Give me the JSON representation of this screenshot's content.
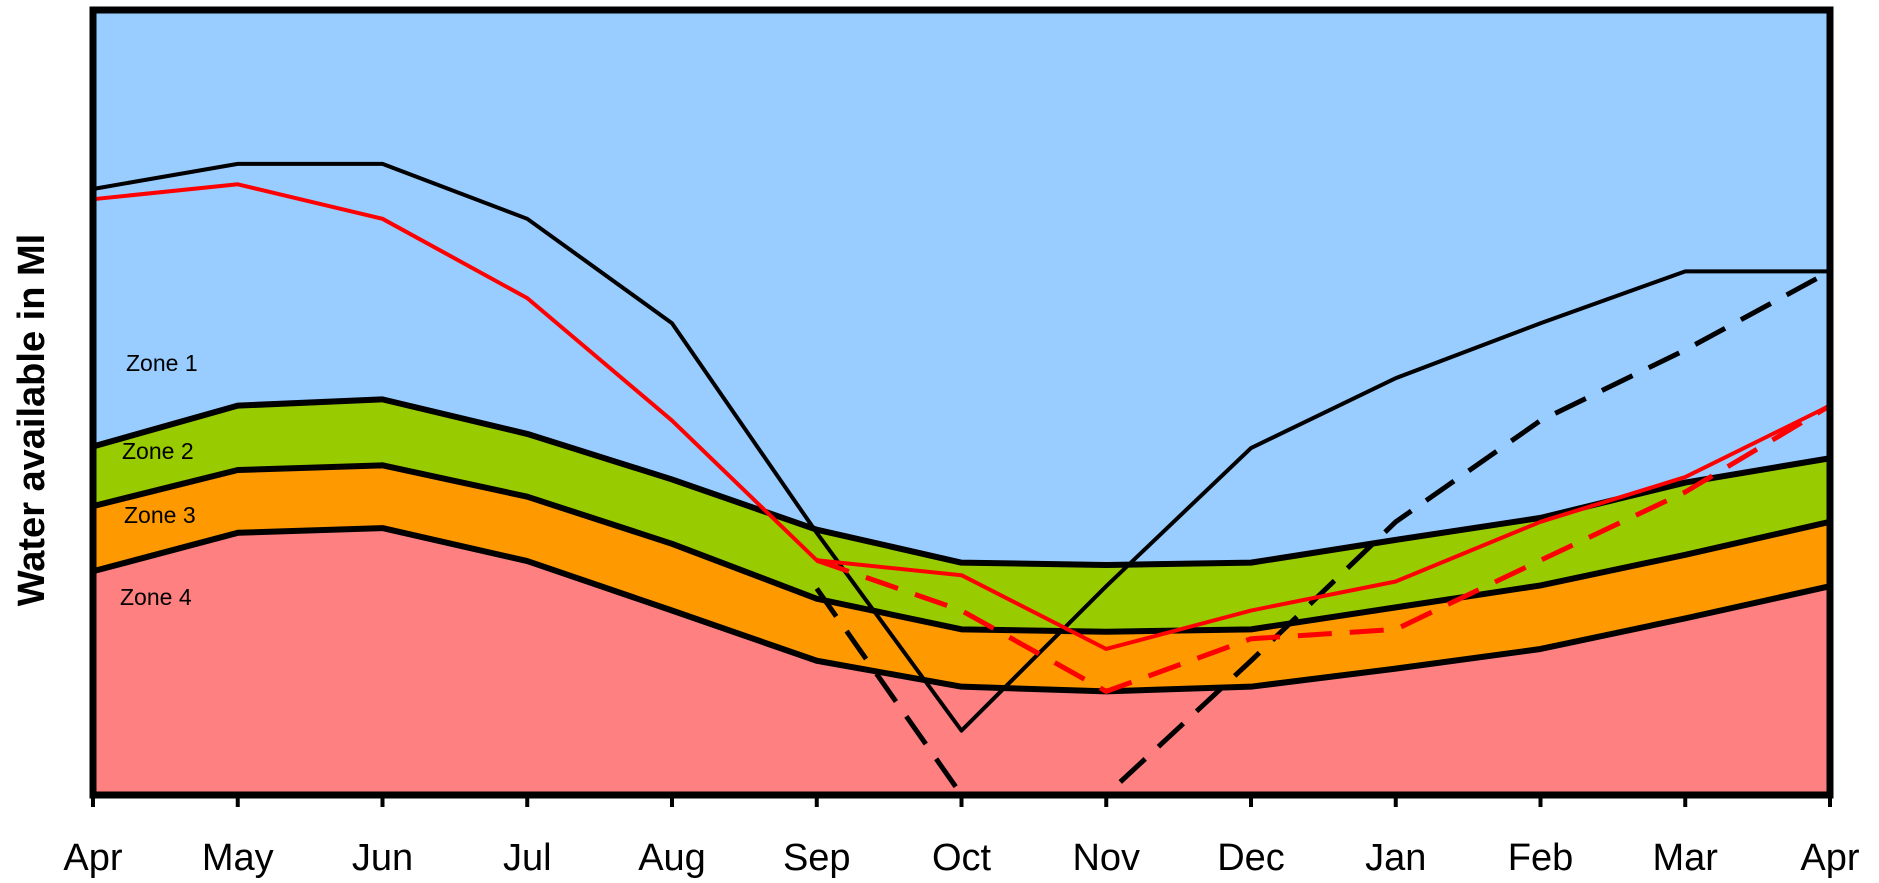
{
  "chart_data": {
    "type": "area",
    "ylabel": "Water available in Ml",
    "categories": [
      "Apr",
      "May",
      "Jun",
      "Jul",
      "Aug",
      "Sep",
      "Oct",
      "Nov",
      "Dec",
      "Jan",
      "Feb",
      "Mar",
      "Apr"
    ],
    "ylim": [
      0,
      100
    ],
    "grid": false,
    "legend": "none",
    "zones": [
      {
        "name": "Zone 1",
        "color": "#99ccff",
        "upper": [
          100,
          100,
          100,
          100,
          100,
          100,
          100,
          100,
          100,
          100,
          100,
          100,
          100
        ]
      },
      {
        "name": "Zone 2",
        "color": "#99cc00",
        "upper": [
          44.4,
          49.6,
          50.4,
          46,
          40.2,
          33.8,
          29.6,
          29.3,
          29.6,
          32.5,
          35.3,
          39.8,
          42.9
        ]
      },
      {
        "name": "Zone 3",
        "color": "#ff9900",
        "upper": [
          36.8,
          41.4,
          42,
          38,
          32,
          25,
          21.1,
          20.8,
          21.1,
          23.9,
          26.7,
          30.6,
          34.8
        ]
      },
      {
        "name": "Zone 4",
        "color": "#ff8080",
        "upper": [
          28.5,
          33.4,
          34,
          29.8,
          23.5,
          17.1,
          13.8,
          13.2,
          13.8,
          16.1,
          18.6,
          22.5,
          26.6
        ]
      }
    ],
    "lines": [
      {
        "color": "#000000",
        "style": "solid",
        "values": [
          77.2,
          80.4,
          80.4,
          73.4,
          60.1,
          33.4,
          8.2,
          26.6,
          44.2,
          53.1,
          60.1,
          66.7,
          66.7
        ]
      },
      {
        "color": "#000000",
        "style": "dashed",
        "values": [
          null,
          null,
          null,
          null,
          null,
          26.3,
          0,
          0,
          17.1,
          34.8,
          47.7,
          56.7,
          66.7
        ]
      },
      {
        "color": "#ff0000",
        "style": "solid",
        "values": [
          75.9,
          77.8,
          73.4,
          63.3,
          47.7,
          29.9,
          28,
          18.6,
          23.5,
          27.2,
          34.8,
          40.5,
          49.6
        ]
      },
      {
        "color": "#ff0000",
        "style": "dashed",
        "values": [
          null,
          null,
          null,
          null,
          null,
          29.9,
          23.5,
          13.2,
          19.9,
          21.1,
          29.9,
          38.6,
          49.6
        ]
      }
    ]
  }
}
